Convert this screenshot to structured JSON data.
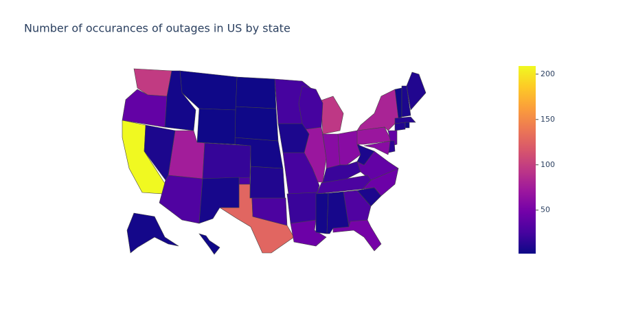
{
  "chart_data": {
    "type": "choropleth",
    "title": "Number of occurances of outages in US by state",
    "locations": [
      "CA",
      "TX",
      "WA",
      "MI",
      "NY",
      "IL",
      "UT",
      "IN",
      "OH",
      "PA",
      "MD",
      "NJ",
      "FL",
      "NC",
      "VA",
      "LA",
      "OR",
      "AZ",
      "OK",
      "GA",
      "TN",
      "MO",
      "MN",
      "WI",
      "KY",
      "AR",
      "CO",
      "KS",
      "NE",
      "SD",
      "ND",
      "MT",
      "WY",
      "ID",
      "NV",
      "NM",
      "IA",
      "MS",
      "AL",
      "SC",
      "WV",
      "ME",
      "VT",
      "NH",
      "MA",
      "CT",
      "RI",
      "DE",
      "AK",
      "HI"
    ],
    "values": [
      209,
      127,
      97,
      95,
      80,
      70,
      75,
      60,
      60,
      70,
      60,
      40,
      50,
      45,
      40,
      45,
      40,
      30,
      28,
      30,
      28,
      25,
      25,
      25,
      20,
      20,
      18,
      10,
      5,
      3,
      3,
      3,
      3,
      5,
      8,
      6,
      8,
      5,
      6,
      8,
      8,
      10,
      3,
      8,
      12,
      10,
      3,
      15,
      5,
      3
    ],
    "colorscale": "Plasma",
    "zlim": [
      2,
      209
    ],
    "colorbar_ticks": [
      50,
      100,
      150,
      200
    ]
  }
}
